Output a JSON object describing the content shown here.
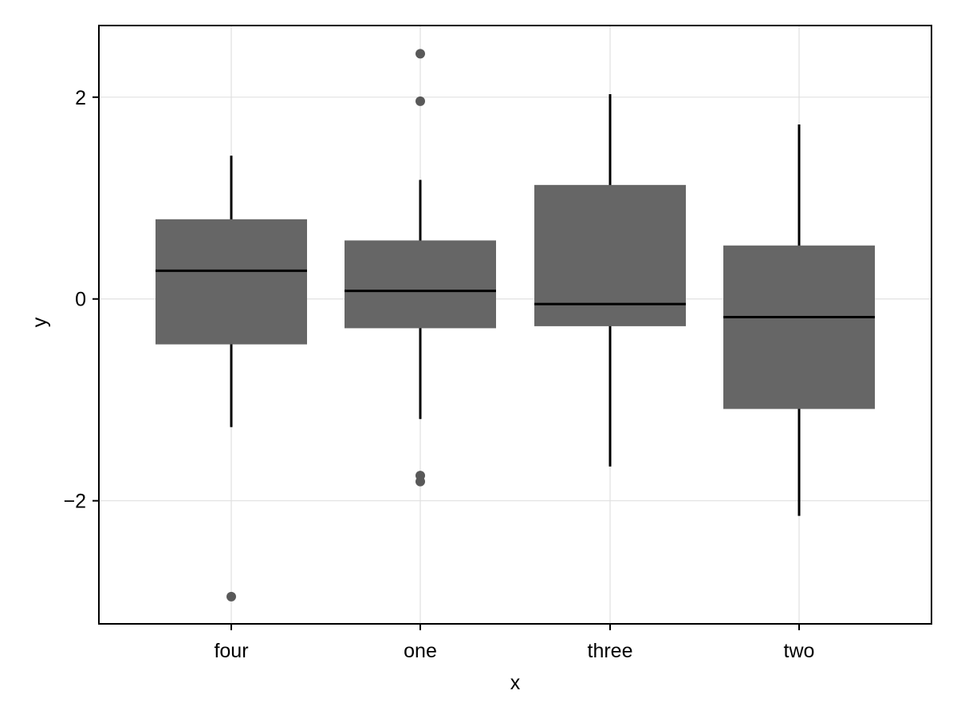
{
  "chart_data": {
    "type": "box",
    "title": "",
    "xlabel": "x",
    "ylabel": "y",
    "categories": [
      "four",
      "one",
      "three",
      "two"
    ],
    "yticks": [
      -2,
      0,
      2
    ],
    "ylim": [
      -3.22,
      2.71
    ],
    "grid": true,
    "legend": "none",
    "colors": {
      "box": "#666666",
      "median": "#000000",
      "whisker": "#000000",
      "outlier": "#595959",
      "grid": "#e0e0e0",
      "frame": "#000000"
    },
    "boxes": [
      {
        "category": "four",
        "q1": -0.45,
        "median": 0.28,
        "q3": 0.79,
        "whisker_low": -1.27,
        "whisker_high": 1.42,
        "outliers": [
          -2.95
        ]
      },
      {
        "category": "one",
        "q1": -0.29,
        "median": 0.08,
        "q3": 0.58,
        "whisker_low": -1.19,
        "whisker_high": 1.18,
        "outliers": [
          2.43,
          1.96,
          -1.75,
          -1.81
        ]
      },
      {
        "category": "three",
        "q1": -0.27,
        "median": -0.05,
        "q3": 1.13,
        "whisker_low": -1.66,
        "whisker_high": 2.03,
        "outliers": []
      },
      {
        "category": "two",
        "q1": -1.09,
        "median": -0.18,
        "q3": 0.53,
        "whisker_low": -2.15,
        "whisker_high": 1.73,
        "outliers": []
      }
    ]
  }
}
